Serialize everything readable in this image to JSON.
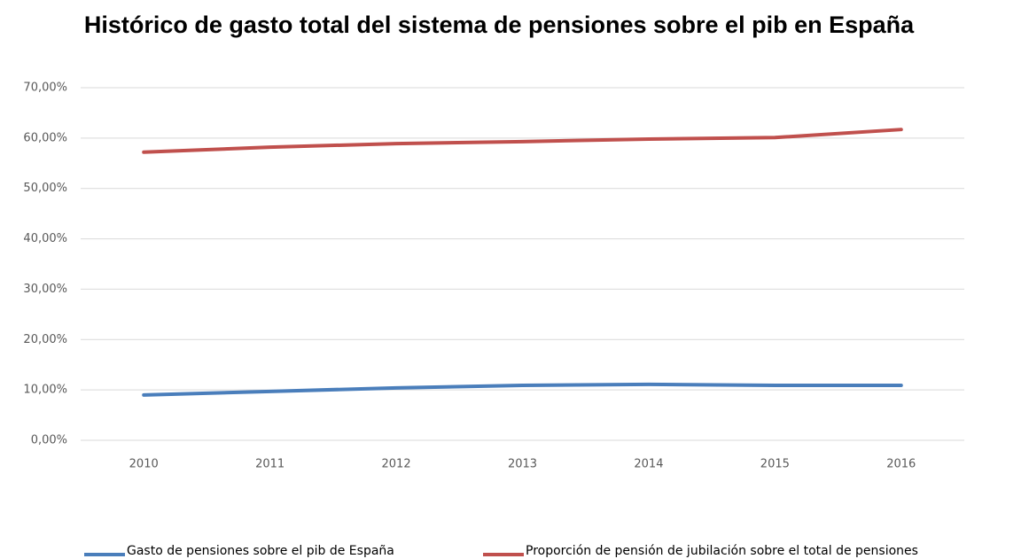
{
  "chart_data": {
    "type": "line",
    "title": "Histórico de gasto total del sistema de pensiones sobre el pib en España",
    "categories": [
      "2010",
      "2011",
      "2012",
      "2013",
      "2014",
      "2015",
      "2016"
    ],
    "series": [
      {
        "name": "Gasto de pensiones sobre el pib de España",
        "color": "#4a7ebb",
        "values": [
          9.0,
          9.7,
          10.4,
          10.9,
          11.1,
          10.9,
          10.9
        ]
      },
      {
        "name": "Proporción de pensión de jubilación sobre el total de pensiones",
        "color": "#c0504d",
        "values": [
          57.2,
          58.2,
          58.9,
          59.3,
          59.8,
          60.1,
          61.7
        ]
      }
    ],
    "ylim": [
      0,
      70
    ],
    "yticks": [
      {
        "value": 0,
        "label": "0,00%"
      },
      {
        "value": 10,
        "label": "10,00%"
      },
      {
        "value": 20,
        "label": "20,00%"
      },
      {
        "value": 30,
        "label": "30,00%"
      },
      {
        "value": 40,
        "label": "40,00%"
      },
      {
        "value": 50,
        "label": "50,00%"
      },
      {
        "value": 60,
        "label": "60,00%"
      },
      {
        "value": 70,
        "label": "70,00%"
      }
    ],
    "grid": true,
    "legend": "bottom"
  }
}
